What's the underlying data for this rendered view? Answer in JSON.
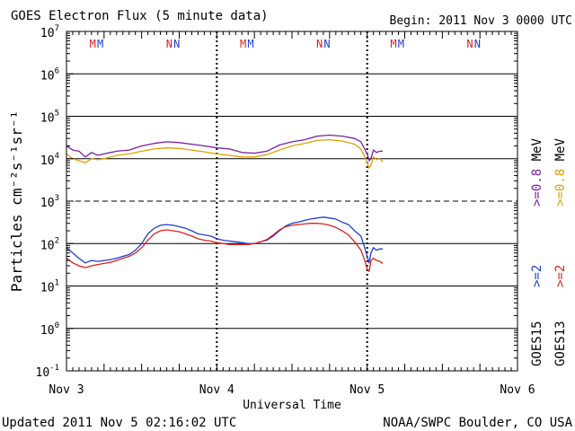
{
  "header": {
    "title": "GOES Electron Flux (5 minute data)",
    "begin": "Begin: 2011 Nov 3 0000 UTC"
  },
  "footer": {
    "updated": "Updated 2011 Nov  5 02:16:02 UTC",
    "credit": "NOAA/SWPC Boulder, CO USA"
  },
  "colors": {
    "goes15_0_8": "#7a1fa2",
    "goes13_0_8": "#e0a000",
    "goes15_2": "#1f3fd0",
    "goes13_2": "#e02020",
    "axes": "#000000"
  },
  "chart_data": {
    "type": "line",
    "title": "GOES Electron Flux (5 minute data)",
    "xlabel": "Universal Time",
    "ylabel": "Particles cm⁻²s⁻¹sr⁻¹",
    "yscale": "log",
    "xlim": [
      0,
      72
    ],
    "ylim_exponent": [
      -1,
      7
    ],
    "x_unit": "hours since 2011 Nov 3 0000 UTC",
    "x_ticks": [
      {
        "x": 0,
        "label": "Nov 3"
      },
      {
        "x": 24,
        "label": "Nov 4"
      },
      {
        "x": 48,
        "label": "Nov 5"
      },
      {
        "x": 72,
        "label": "Nov 6"
      }
    ],
    "y_ticks": [
      {
        "exp": -1,
        "base": "10",
        "sup": "-1"
      },
      {
        "exp": 0,
        "base": "10",
        "sup": "0"
      },
      {
        "exp": 1,
        "base": "10",
        "sup": "1"
      },
      {
        "exp": 2,
        "base": "10",
        "sup": "2"
      },
      {
        "exp": 3,
        "base": "10",
        "sup": "3"
      },
      {
        "exp": 4,
        "base": "10",
        "sup": "4"
      },
      {
        "exp": 5,
        "base": "10",
        "sup": "5"
      },
      {
        "exp": 6,
        "base": "10",
        "sup": "6"
      },
      {
        "exp": 7,
        "base": "10",
        "sup": "7"
      }
    ],
    "solid_gridlines": [
      0,
      1,
      2,
      4,
      5,
      6
    ],
    "dashed_gridlines": [
      3
    ],
    "day_boundaries": [
      24,
      48
    ],
    "markers": [
      {
        "x": 4.2,
        "label": "M",
        "satellite": "GOES13"
      },
      {
        "x": 5.4,
        "label": "M",
        "satellite": "GOES15"
      },
      {
        "x": 16.4,
        "label": "N",
        "satellite": "GOES13"
      },
      {
        "x": 17.6,
        "label": "N",
        "satellite": "GOES15"
      },
      {
        "x": 28.2,
        "label": "M",
        "satellite": "GOES13"
      },
      {
        "x": 29.4,
        "label": "M",
        "satellite": "GOES15"
      },
      {
        "x": 40.4,
        "label": "N",
        "satellite": "GOES13"
      },
      {
        "x": 41.6,
        "label": "N",
        "satellite": "GOES15"
      },
      {
        "x": 52.2,
        "label": "M",
        "satellite": "GOES13"
      },
      {
        "x": 53.4,
        "label": "M",
        "satellite": "GOES15"
      },
      {
        "x": 64.4,
        "label": "N",
        "satellite": "GOES13"
      },
      {
        "x": 65.6,
        "label": "N",
        "satellite": "GOES15"
      }
    ],
    "series": [
      {
        "name": "GOES15 >=0.8 MeV",
        "color": "#7a1fa2",
        "x": [
          0,
          1,
          2,
          3,
          4,
          5,
          6,
          8,
          10,
          12,
          14,
          16,
          18,
          20,
          22,
          24,
          26,
          28,
          30,
          32,
          34,
          36,
          38,
          40,
          42,
          44,
          46,
          47,
          47.5,
          48,
          48.3,
          48.6,
          49,
          49.5,
          50,
          50.5
        ],
        "y": [
          20000,
          16000,
          15000,
          11000,
          14000,
          12000,
          13000,
          15000,
          16000,
          20000,
          23000,
          25000,
          24000,
          22000,
          20000,
          18000,
          17000,
          14000,
          13500,
          15000,
          21000,
          25000,
          28000,
          34000,
          36000,
          34000,
          30000,
          25000,
          18000,
          13000,
          9000,
          10000,
          16000,
          14000,
          15000,
          15000
        ]
      },
      {
        "name": "GOES13 >=0.8 MeV",
        "color": "#e0a000",
        "x": [
          0,
          1,
          2,
          3,
          4,
          5,
          6,
          8,
          10,
          12,
          14,
          16,
          18,
          20,
          22,
          24,
          26,
          28,
          30,
          32,
          34,
          36,
          38,
          40,
          42,
          44,
          46,
          47,
          47.5,
          48,
          48.3,
          48.6,
          49,
          49.5,
          50,
          50.5
        ],
        "y": [
          13000,
          10000,
          9000,
          8000,
          10000,
          9500,
          10000,
          12000,
          13000,
          15000,
          17000,
          18000,
          17500,
          16000,
          14500,
          13000,
          12000,
          11000,
          11000,
          12500,
          16000,
          20000,
          23000,
          27000,
          28000,
          26000,
          22000,
          17000,
          12000,
          8000,
          6000,
          7000,
          11000,
          9500,
          10000,
          8500
        ]
      },
      {
        "name": "GOES15 >=2 MeV",
        "color": "#1f3fd0",
        "x": [
          0,
          1,
          2,
          3,
          4,
          5,
          6,
          7,
          8,
          9,
          10,
          11,
          12,
          13,
          14,
          15,
          16,
          17,
          18,
          19,
          20,
          21,
          22,
          23,
          24,
          25,
          26,
          27,
          28,
          29,
          30,
          31,
          32,
          33,
          34,
          35,
          36,
          37,
          38,
          39,
          40,
          41,
          42,
          43,
          44,
          45,
          46,
          47,
          47.5,
          48,
          48.3,
          48.6,
          49,
          49.5,
          50,
          50.5
        ],
        "y": [
          80,
          60,
          45,
          35,
          40,
          38,
          40,
          42,
          45,
          50,
          55,
          70,
          100,
          170,
          230,
          270,
          280,
          270,
          250,
          230,
          200,
          170,
          160,
          150,
          130,
          120,
          115,
          110,
          105,
          100,
          100,
          110,
          120,
          150,
          200,
          260,
          300,
          320,
          350,
          380,
          400,
          420,
          400,
          380,
          320,
          280,
          200,
          150,
          90,
          50,
          35,
          60,
          80,
          70,
          75,
          75
        ]
      },
      {
        "name": "GOES13 >=2 MeV",
        "color": "#e02020",
        "x": [
          0,
          1,
          2,
          3,
          4,
          5,
          6,
          7,
          8,
          9,
          10,
          11,
          12,
          13,
          14,
          15,
          16,
          17,
          18,
          19,
          20,
          21,
          22,
          23,
          24,
          25,
          26,
          27,
          28,
          29,
          30,
          31,
          32,
          33,
          34,
          35,
          36,
          37,
          38,
          39,
          40,
          41,
          42,
          43,
          44,
          45,
          46,
          47,
          47.5,
          48,
          48.3,
          48.6,
          49,
          49.5,
          50,
          50.5
        ],
        "y": [
          45,
          35,
          30,
          27,
          30,
          32,
          34,
          36,
          40,
          45,
          50,
          60,
          80,
          120,
          170,
          200,
          210,
          200,
          190,
          170,
          150,
          130,
          120,
          115,
          105,
          100,
          95,
          95,
          95,
          95,
          100,
          110,
          125,
          160,
          210,
          250,
          270,
          280,
          290,
          300,
          300,
          290,
          270,
          240,
          200,
          160,
          110,
          70,
          45,
          25,
          22,
          40,
          45,
          40,
          38,
          34
        ]
      }
    ],
    "legend": {
      "placement": "right",
      "satellite_labels": [
        {
          "text": "GOES15",
          "color": "#000000"
        },
        {
          "text": "GOES13",
          "color": "#000000"
        }
      ],
      "entries": [
        {
          "text": ">=2",
          "color": "#1f3fd0",
          "column": "GOES15"
        },
        {
          "text": ">=2",
          "color": "#e02020",
          "column": "GOES13"
        },
        {
          "text": ">=0.8",
          "color": "#7a1fa2",
          "column": "GOES15"
        },
        {
          "text": ">=0.8",
          "color": "#e0a000",
          "column": "GOES13"
        },
        {
          "text": "MeV",
          "color": "#000000",
          "column": "GOES15"
        },
        {
          "text": "MeV",
          "color": "#000000",
          "column": "GOES13"
        }
      ]
    }
  }
}
